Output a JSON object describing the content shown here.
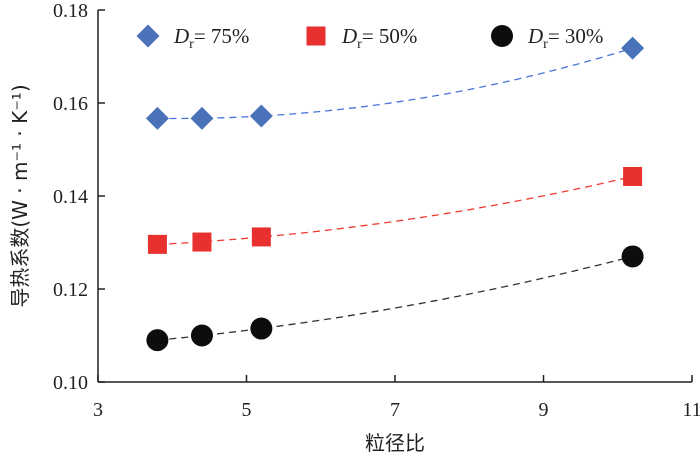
{
  "chart_data": {
    "type": "scatter",
    "xlabel": "粒径比",
    "ylabel": "导热系数(W · m⁻¹ · K⁻¹)",
    "xlim": [
      3,
      11
    ],
    "ylim": [
      0.1,
      0.18
    ],
    "x_ticks": [
      "3",
      "5",
      "7",
      "9",
      "11"
    ],
    "y_ticks": [
      "0.10",
      "0.12",
      "0.14",
      "0.16",
      "0.18"
    ],
    "legend_position": "top",
    "grid": false,
    "series": [
      {
        "name": "Dr= 75%",
        "name_main": "D",
        "name_sub": "r",
        "name_rest": "= 75%",
        "marker": "diamond",
        "color": "#4a72b8",
        "line_color": "#4a72d8",
        "trend": "dashed",
        "x": [
          3.8,
          4.4,
          5.2,
          10.2
        ],
        "y": [
          0.1567,
          0.1567,
          0.1572,
          0.1718
        ]
      },
      {
        "name": "Dr= 50%",
        "name_main": "D",
        "name_sub": "r",
        "name_rest": "= 50%",
        "marker": "square",
        "color": "#e8312f",
        "line_color": "#f0392e",
        "trend": "dashed",
        "x": [
          3.8,
          4.4,
          5.2,
          10.2
        ],
        "y": [
          0.1296,
          0.1301,
          0.1312,
          0.1442
        ]
      },
      {
        "name": "Dr= 30%",
        "name_main": "D",
        "name_sub": "r",
        "name_rest": "= 30%",
        "marker": "circle",
        "color": "#0d0d0d",
        "line_color": "#333333",
        "trend": "dashed",
        "x": [
          3.8,
          4.4,
          5.2,
          10.2
        ],
        "y": [
          0.109,
          0.11,
          0.1115,
          0.127
        ]
      }
    ]
  }
}
